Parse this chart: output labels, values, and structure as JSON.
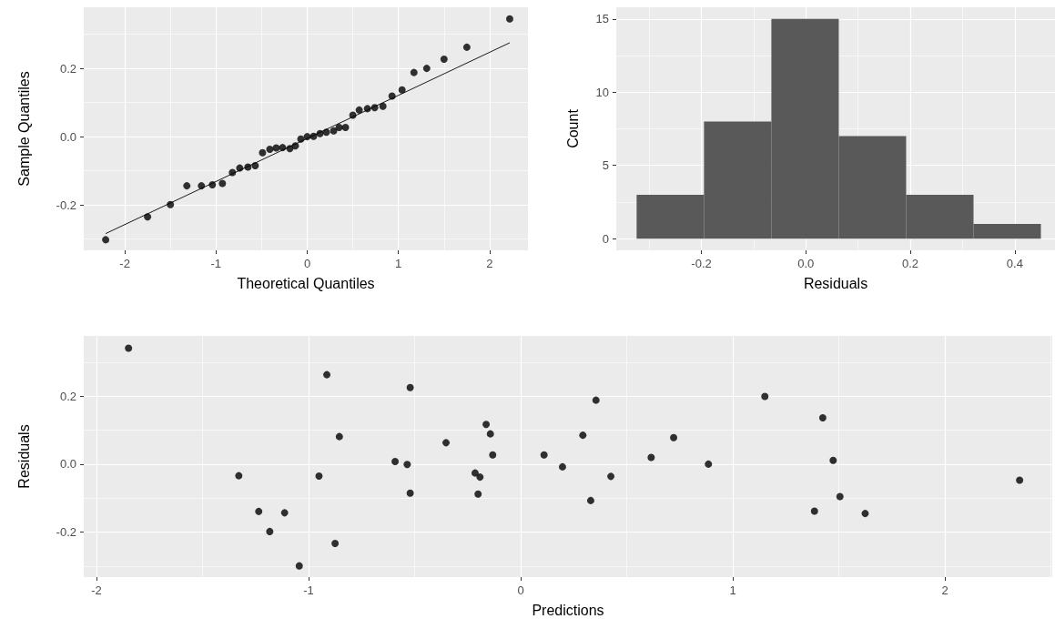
{
  "chart_data": [
    {
      "type": "scatter",
      "xlabel": "Theoretical Quantiles",
      "ylabel": "Sample Quantiles",
      "xlim": [
        -2.45,
        2.42
      ],
      "ylim": [
        -0.333,
        0.379
      ],
      "xticks": [
        -2,
        -1,
        0,
        1,
        2
      ],
      "yticks": [
        -0.2,
        {
          "value": 0,
          "label": "0.0"
        },
        0.2
      ],
      "grid": true,
      "marker": "circle",
      "series": [
        {
          "type": "scatter",
          "color": "#000000",
          "x": [
            -2.21,
            -1.75,
            -1.5,
            -1.32,
            -1.16,
            -1.04,
            -0.93,
            -0.82,
            -0.74,
            -0.65,
            -0.57,
            -0.49,
            -0.41,
            -0.34,
            -0.27,
            -0.19,
            -0.13,
            -0.07,
            0,
            0.07,
            0.14,
            0.21,
            0.29,
            0.35,
            0.42,
            0.5,
            0.57,
            0.66,
            0.74,
            0.83,
            0.93,
            1.04,
            1.17,
            1.31,
            1.5,
            1.75,
            2.22
          ],
          "values": [
            -0.302,
            -0.235,
            -0.199,
            -0.144,
            -0.144,
            -0.141,
            -0.137,
            -0.105,
            -0.092,
            -0.089,
            -0.085,
            -0.047,
            -0.037,
            -0.033,
            -0.032,
            -0.035,
            -0.027,
            -0.007,
            0,
            0.001,
            0.009,
            0.013,
            0.017,
            0.027,
            0.027,
            0.063,
            0.078,
            0.082,
            0.085,
            0.089,
            0.119,
            0.137,
            0.188,
            0.2,
            0.227,
            0.262,
            0.345
          ]
        },
        {
          "type": "line",
          "color": "#000000",
          "marker": "none",
          "x": [
            -2.21,
            2.22
          ],
          "values": [
            -0.284,
            0.275
          ]
        }
      ]
    },
    {
      "type": "histogram",
      "xlabel": "Residuals",
      "ylabel": "Count",
      "bins": [
        -0.324,
        -0.195,
        -0.066,
        0.063,
        0.192,
        0.321,
        0.45
      ],
      "values": [
        3,
        8,
        15,
        7,
        3,
        1
      ],
      "color": "#595959",
      "xlim": [
        -0.363,
        0.477
      ],
      "ylim": [
        -0.8,
        15.8
      ],
      "xticks": [
        -0.2,
        {
          "value": 0,
          "label": "0.0"
        },
        0.2,
        0.4
      ],
      "yticks": [
        0,
        5,
        10,
        15
      ],
      "grid": true
    },
    {
      "type": "scatter",
      "xlabel": "Predictions",
      "ylabel": "Residuals",
      "xlim": [
        -2.06,
        2.506
      ],
      "ylim": [
        -0.332,
        0.377
      ],
      "xticks": [
        -2,
        -1,
        0,
        1,
        2
      ],
      "yticks": [
        -0.2,
        {
          "value": 0,
          "label": "0.0"
        },
        0.2
      ],
      "grid": true,
      "marker": "circle",
      "color": "#000000",
      "x": [
        -1.849,
        -0.914,
        -0.521,
        -0.855,
        -0.352,
        -0.163,
        -0.143,
        -0.132,
        -0.592,
        -0.535,
        -1.329,
        -0.951,
        -0.215,
        -0.192,
        -0.521,
        -0.201,
        -1.235,
        -1.113,
        -1.183,
        -0.875,
        -1.044,
        0.11,
        0.197,
        0.293,
        0.355,
        0.33,
        0.425,
        0.615,
        0.721,
        0.885,
        1.151,
        1.424,
        1.473,
        1.505,
        1.385,
        1.624,
        2.352
      ],
      "values": [
        0.341,
        0.263,
        0.225,
        0.081,
        0.063,
        0.117,
        0.089,
        0.027,
        0.008,
        -0.001,
        -0.034,
        -0.035,
        -0.026,
        -0.038,
        -0.085,
        -0.088,
        -0.139,
        -0.143,
        -0.198,
        -0.233,
        -0.299,
        0.027,
        -0.008,
        0.085,
        0.188,
        -0.107,
        -0.036,
        0.02,
        0.078,
        0,
        0.199,
        0.136,
        0.011,
        -0.095,
        -0.138,
        -0.145,
        -0.047
      ]
    }
  ]
}
